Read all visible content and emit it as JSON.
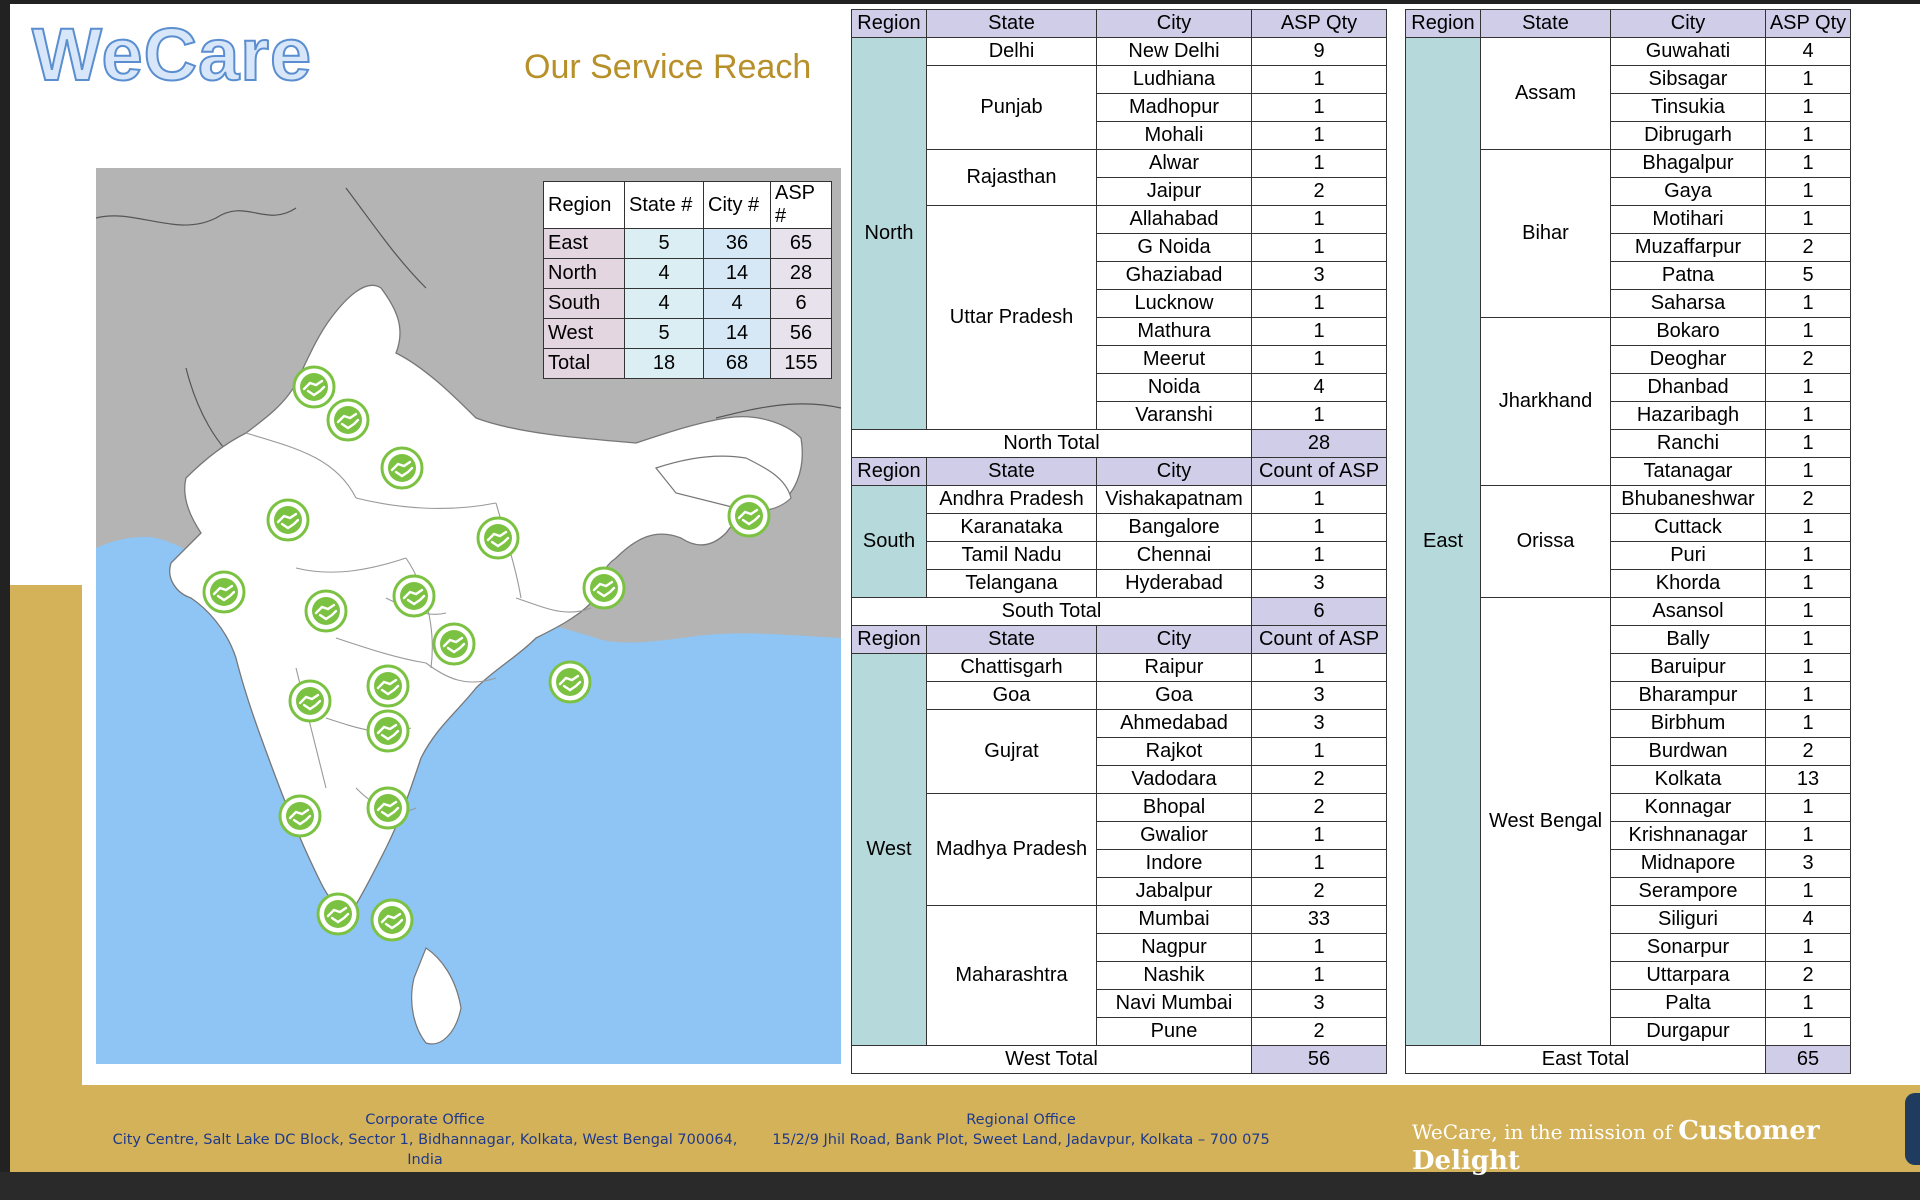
{
  "brand": {
    "logo": "WeCare",
    "title": "Our Service Reach"
  },
  "colors": {
    "gold": "#d4b25a",
    "sea": "#8ec5f5",
    "land_outside": "#b4b4b4",
    "marker_green": "#7cc242",
    "region_cell": "#b6d9dc",
    "header_cell": "#cfcde8"
  },
  "summary": {
    "headers": [
      "Region",
      "State #",
      "City #",
      "ASP #"
    ],
    "rows": [
      {
        "region": "East",
        "states": "5",
        "cities": "36",
        "asp": "65"
      },
      {
        "region": "North",
        "states": "4",
        "cities": "14",
        "asp": "28"
      },
      {
        "region": "South",
        "states": "4",
        "cities": "4",
        "asp": "6"
      },
      {
        "region": "West",
        "states": "5",
        "cities": "14",
        "asp": "56"
      },
      {
        "region": "Total",
        "states": "18",
        "cities": "68",
        "asp": "155"
      }
    ]
  },
  "map": {
    "marker_icon": "handshake-icon",
    "marker_count": 18
  },
  "tables": {
    "left": [
      {
        "region": "North",
        "headers": [
          "Region",
          "State",
          "City",
          "ASP Qty"
        ],
        "total_label": "North Total",
        "total": "28",
        "states": [
          {
            "name": "Delhi",
            "cities": [
              [
                "New Delhi",
                "9"
              ]
            ]
          },
          {
            "name": "Punjab",
            "cities": [
              [
                "Ludhiana",
                "1"
              ],
              [
                "Madhopur",
                "1"
              ],
              [
                "Mohali",
                "1"
              ]
            ]
          },
          {
            "name": "Rajasthan",
            "cities": [
              [
                "Alwar",
                "1"
              ],
              [
                "Jaipur",
                "2"
              ]
            ]
          },
          {
            "name": "Uttar Pradesh",
            "cities": [
              [
                "Allahabad",
                "1"
              ],
              [
                "G Noida",
                "1"
              ],
              [
                "Ghaziabad",
                "3"
              ],
              [
                "Lucknow",
                "1"
              ],
              [
                "Mathura",
                "1"
              ],
              [
                "Meerut",
                "1"
              ],
              [
                "Noida",
                "4"
              ],
              [
                "Varanshi",
                "1"
              ]
            ]
          }
        ]
      },
      {
        "region": "South",
        "headers": [
          "Region",
          "State",
          "City",
          "Count of ASP"
        ],
        "total_label": "South Total",
        "total": "6",
        "states": [
          {
            "name": "Andhra Pradesh",
            "cities": [
              [
                "Vishakapatnam",
                "1"
              ]
            ]
          },
          {
            "name": "Karanataka",
            "cities": [
              [
                "Bangalore",
                "1"
              ]
            ]
          },
          {
            "name": "Tamil Nadu",
            "cities": [
              [
                "Chennai",
                "1"
              ]
            ]
          },
          {
            "name": "Telangana",
            "cities": [
              [
                "Hyderabad",
                "3"
              ]
            ]
          }
        ]
      },
      {
        "region": "West",
        "headers": [
          "Region",
          "State",
          "City",
          "Count of ASP"
        ],
        "total_label": "West Total",
        "total": "56",
        "states": [
          {
            "name": "Chattisgarh",
            "cities": [
              [
                "Raipur",
                "1"
              ]
            ]
          },
          {
            "name": "Goa",
            "cities": [
              [
                "Goa",
                "3"
              ]
            ]
          },
          {
            "name": "Gujrat",
            "cities": [
              [
                "Ahmedabad",
                "3"
              ],
              [
                "Rajkot",
                "1"
              ],
              [
                "Vadodara",
                "2"
              ]
            ]
          },
          {
            "name": "Madhya Pradesh",
            "cities": [
              [
                "Bhopal",
                "2"
              ],
              [
                "Gwalior",
                "1"
              ],
              [
                "Indore",
                "1"
              ],
              [
                "Jabalpur",
                "2"
              ]
            ]
          },
          {
            "name": "Maharashtra",
            "cities": [
              [
                "Mumbai",
                "33"
              ],
              [
                "Nagpur",
                "1"
              ],
              [
                "Nashik",
                "1"
              ],
              [
                "Navi Mumbai",
                "3"
              ],
              [
                "Pune",
                "2"
              ]
            ]
          }
        ]
      }
    ],
    "right": [
      {
        "region": "East",
        "headers": [
          "Region",
          "State",
          "City",
          "ASP Qty"
        ],
        "total_label": "East Total",
        "total": "65",
        "states": [
          {
            "name": "Assam",
            "cities": [
              [
                "Guwahati",
                "4"
              ],
              [
                "Sibsagar",
                "1"
              ],
              [
                "Tinsukia",
                "1"
              ],
              [
                "Dibrugarh",
                "1"
              ]
            ]
          },
          {
            "name": "Bihar",
            "cities": [
              [
                "Bhagalpur",
                "1"
              ],
              [
                "Gaya",
                "1"
              ],
              [
                "Motihari",
                "1"
              ],
              [
                "Muzaffarpur",
                "2"
              ],
              [
                "Patna",
                "5"
              ],
              [
                "Saharsa",
                "1"
              ]
            ]
          },
          {
            "name": "Jharkhand",
            "cities": [
              [
                "Bokaro",
                "1"
              ],
              [
                "Deoghar",
                "2"
              ],
              [
                "Dhanbad",
                "1"
              ],
              [
                "Hazaribagh",
                "1"
              ],
              [
                "Ranchi",
                "1"
              ],
              [
                "Tatanagar",
                "1"
              ]
            ]
          },
          {
            "name": "Orissa",
            "cities": [
              [
                "Bhubaneshwar",
                "2"
              ],
              [
                "Cuttack",
                "1"
              ],
              [
                "Puri",
                "1"
              ],
              [
                "Khorda",
                "1"
              ]
            ]
          },
          {
            "name": "West Bengal",
            "cities": [
              [
                "Asansol",
                "1"
              ],
              [
                "Bally",
                "1"
              ],
              [
                "Baruipur",
                "1"
              ],
              [
                "Bharampur",
                "1"
              ],
              [
                "Birbhum",
                "1"
              ],
              [
                "Burdwan",
                "2"
              ],
              [
                "Kolkata",
                "13"
              ],
              [
                "Konnagar",
                "1"
              ],
              [
                "Krishnanagar",
                "1"
              ],
              [
                "Midnapore",
                "3"
              ],
              [
                "Serampore",
                "1"
              ],
              [
                "Siliguri",
                "4"
              ],
              [
                "Sonarpur",
                "1"
              ],
              [
                "Uttarpara",
                "2"
              ],
              [
                "Palta",
                "1"
              ],
              [
                "Durgapur",
                "1"
              ]
            ]
          }
        ]
      }
    ]
  },
  "footer": {
    "corporate_title": "Corporate Office",
    "corporate_address": "City Centre, Salt Lake DC Block, Sector 1, Bidhannagar, Kolkata, West Bengal 700064, India",
    "regional_title": "Regional Office",
    "regional_address": "15/2/9 Jhil Road, Bank Plot, Sweet Land, Jadavpur, Kolkata – 700 075",
    "tagline_prefix": "WeCare, in the mission of",
    "tagline_emphasis": "Customer Delight"
  }
}
